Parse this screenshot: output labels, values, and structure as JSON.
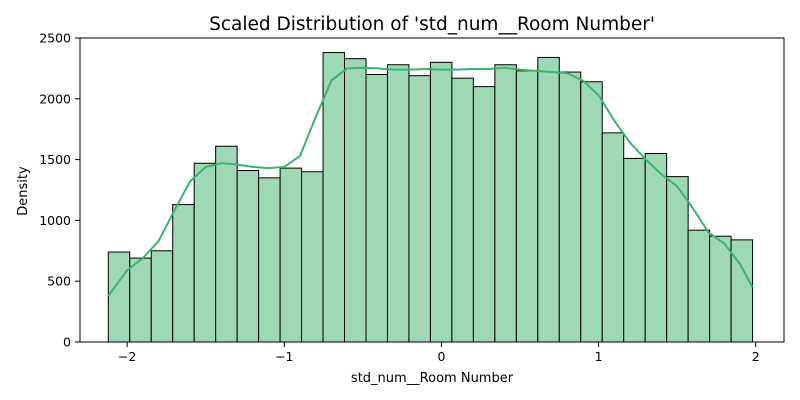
{
  "chart_data": {
    "type": "bar",
    "title": "Scaled Distribution of 'std_num__Room Number'",
    "xlabel": "std_num__Room Number",
    "ylabel": "Density",
    "xlim": [
      -2.3,
      2.18
    ],
    "ylim": [
      0,
      2500
    ],
    "x_ticks": [
      -2,
      -1,
      0,
      1,
      2
    ],
    "x_tick_labels": [
      "−2",
      "−1",
      "0",
      "1",
      "2"
    ],
    "y_ticks": [
      0,
      500,
      1000,
      1500,
      2000,
      2500
    ],
    "y_tick_labels": [
      "0",
      "500",
      "1000",
      "1500",
      "2000",
      "2500"
    ],
    "bin_range": [
      -2.12,
      1.98
    ],
    "bars": [
      740,
      690,
      750,
      1130,
      1470,
      1610,
      1410,
      1350,
      1430,
      1400,
      2380,
      2330,
      2200,
      2280,
      2190,
      2300,
      2170,
      2100,
      2280,
      2230,
      2340,
      2220,
      2140,
      1720,
      1510,
      1550,
      1360,
      920,
      870,
      840
    ],
    "kde": {
      "x": [
        -2.12,
        -2.0,
        -1.9,
        -1.8,
        -1.7,
        -1.6,
        -1.5,
        -1.4,
        -1.3,
        -1.2,
        -1.1,
        -1.0,
        -0.9,
        -0.8,
        -0.7,
        -0.6,
        -0.5,
        -0.4,
        -0.3,
        -0.2,
        -0.1,
        0.0,
        0.1,
        0.2,
        0.3,
        0.4,
        0.5,
        0.6,
        0.7,
        0.8,
        0.9,
        1.0,
        1.1,
        1.2,
        1.3,
        1.4,
        1.5,
        1.6,
        1.7,
        1.8,
        1.9,
        1.98
      ],
      "y": [
        380,
        590,
        690,
        830,
        1080,
        1320,
        1440,
        1470,
        1460,
        1440,
        1430,
        1440,
        1530,
        1850,
        2150,
        2250,
        2255,
        2250,
        2240,
        2240,
        2245,
        2240,
        2240,
        2245,
        2245,
        2255,
        2240,
        2230,
        2220,
        2210,
        2150,
        2030,
        1820,
        1640,
        1500,
        1380,
        1280,
        1100,
        900,
        810,
        640,
        450
      ]
    },
    "bar_fill": "#9fd8b5",
    "bar_edge": "#000000",
    "kde_color": "#3cb371",
    "grid": false,
    "legend": "none"
  }
}
